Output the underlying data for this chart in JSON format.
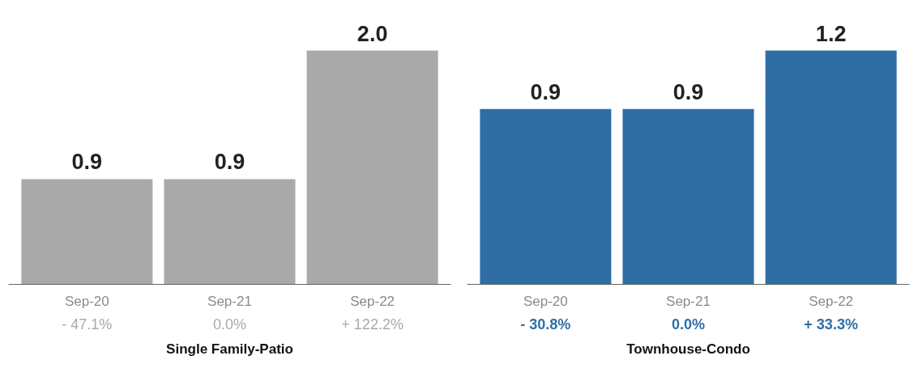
{
  "chart_data": [
    {
      "type": "bar",
      "xlabel": "Single Family-Patio",
      "categories": [
        "Sep-20",
        "Sep-21",
        "Sep-22"
      ],
      "values": [
        0.9,
        0.9,
        2.0
      ],
      "value_labels": [
        "0.9",
        "0.9",
        "2.0"
      ],
      "color": "#a9a9a9",
      "grid": false,
      "tick_labels": "x",
      "annotations": [
        "- 47.1%",
        "0.0%",
        "+ 122.2%"
      ]
    },
    {
      "type": "bar",
      "xlabel": "Townhouse-Condo",
      "categories": [
        "Sep-20",
        "Sep-21",
        "Sep-22"
      ],
      "values": [
        0.9,
        0.9,
        1.2
      ],
      "value_labels": [
        "0.9",
        "0.9",
        "1.2"
      ],
      "color": "#2f6ea5",
      "grid": false,
      "tick_labels": "x",
      "annotations": [
        "- 30.8%",
        "0.0%",
        "+ 33.3%"
      ]
    }
  ]
}
